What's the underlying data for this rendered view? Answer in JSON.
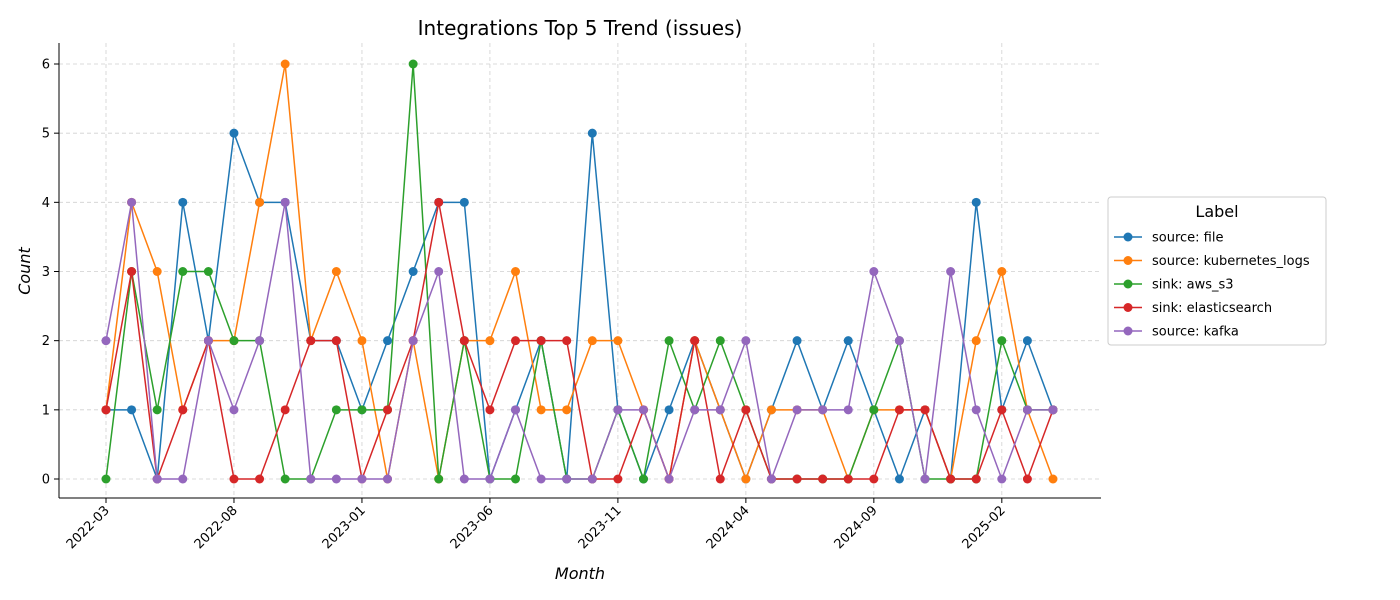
{
  "chart_data": {
    "type": "line",
    "title": "Integrations Top 5 Trend (issues)",
    "xlabel": "Month",
    "ylabel": "Count",
    "ylim": [
      0,
      6
    ],
    "yticks": [
      0,
      1,
      2,
      3,
      4,
      5,
      6
    ],
    "x_tick_labels": [
      "2022-03",
      "2022-08",
      "2023-01",
      "2023-06",
      "2023-11",
      "2024-04",
      "2024-09",
      "2025-02"
    ],
    "x": [
      "2022-03",
      "2022-04",
      "2022-05",
      "2022-06",
      "2022-07",
      "2022-08",
      "2022-09",
      "2022-10",
      "2022-11",
      "2022-12",
      "2023-01",
      "2023-02",
      "2023-03",
      "2023-04",
      "2023-05",
      "2023-06",
      "2023-07",
      "2023-08",
      "2023-09",
      "2023-10",
      "2023-11",
      "2023-12",
      "2024-01",
      "2024-02",
      "2024-03",
      "2024-04",
      "2024-05",
      "2024-06",
      "2024-07",
      "2024-08",
      "2024-09",
      "2024-10",
      "2024-11",
      "2024-12",
      "2025-01",
      "2025-02",
      "2025-03",
      "2025-04"
    ],
    "grid": true,
    "legend": {
      "title": "Label",
      "placement": "right"
    },
    "series": [
      {
        "name": "source: file",
        "color": "#1f77b4",
        "values": [
          1,
          1,
          0,
          4,
          2,
          5,
          4,
          4,
          2,
          2,
          1,
          2,
          3,
          4,
          4,
          0,
          1,
          2,
          0,
          5,
          1,
          0,
          1,
          2,
          1,
          0,
          1,
          2,
          1,
          2,
          1,
          0,
          1,
          0,
          4,
          1,
          2,
          1
        ]
      },
      {
        "name": "source: kubernetes_logs",
        "color": "#ff7f0e",
        "values": [
          1,
          4,
          3,
          1,
          2,
          2,
          4,
          6,
          2,
          3,
          2,
          0,
          2,
          0,
          2,
          2,
          3,
          1,
          1,
          2,
          2,
          1,
          0,
          2,
          1,
          0,
          1,
          1,
          1,
          0,
          1,
          1,
          1,
          0,
          2,
          3,
          1,
          0
        ]
      },
      {
        "name": "sink: aws_s3",
        "color": "#2ca02c",
        "values": [
          0,
          3,
          1,
          3,
          3,
          2,
          2,
          0,
          0,
          1,
          1,
          1,
          6,
          0,
          2,
          0,
          0,
          2,
          0,
          0,
          1,
          0,
          2,
          1,
          2,
          1,
          0,
          0,
          0,
          0,
          1,
          2,
          0,
          0,
          0,
          2,
          1,
          1
        ]
      },
      {
        "name": "sink: elasticsearch",
        "color": "#d62728",
        "values": [
          1,
          3,
          0,
          1,
          2,
          0,
          0,
          1,
          2,
          2,
          0,
          1,
          2,
          4,
          2,
          1,
          2,
          2,
          2,
          0,
          0,
          1,
          0,
          2,
          0,
          1,
          0,
          0,
          0,
          0,
          0,
          1,
          1,
          0,
          0,
          1,
          0,
          1
        ]
      },
      {
        "name": "source: kafka",
        "color": "#9467bd",
        "values": [
          2,
          4,
          0,
          0,
          2,
          1,
          2,
          4,
          0,
          0,
          0,
          0,
          2,
          3,
          0,
          0,
          1,
          0,
          0,
          0,
          1,
          1,
          0,
          1,
          1,
          2,
          0,
          1,
          1,
          1,
          3,
          2,
          0,
          3,
          1,
          0,
          1,
          1
        ]
      }
    ]
  }
}
